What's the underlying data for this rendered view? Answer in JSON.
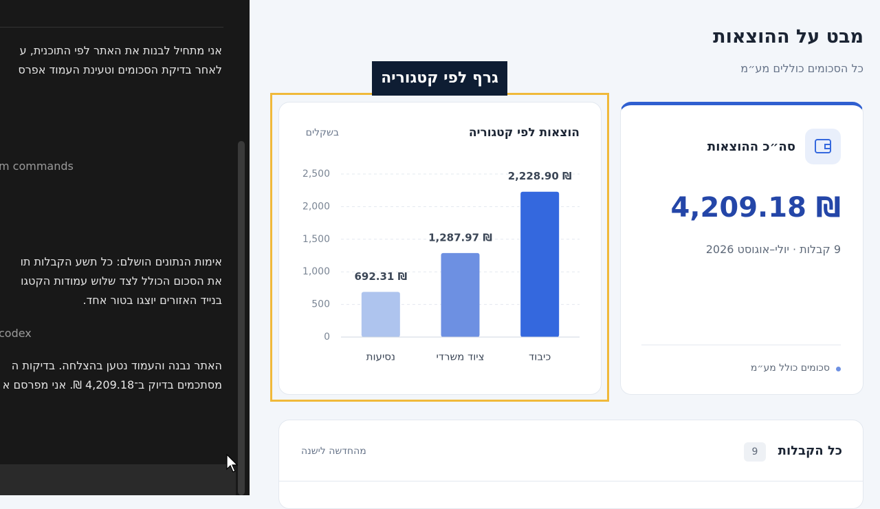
{
  "conversation": {
    "lines": [
      "אני מתחיל לבנות את האתר לפי התוכנית, ע",
      "לאחר בדיקת הסכומים וטעינת העמוד אפרס",
      "m commands",
      "אימות הנתונים הושלם: כל תשע הקבלות תו",
      "את הסכום הכולל לצד שלוש עמודות הקטגו",
      "בנייד האזורים יוצגו בטור אחד.",
      "codex",
      "האתר נבנה והעמוד נטען בהצלחה. בדיקות ה",
      "מסתכמים בדיוק ב־4,209.18 ₪. אני מפרסם א"
    ]
  },
  "header": {
    "title": "מבט על ההוצאות",
    "subtitle": "כל הסכומים כוללים מע״מ"
  },
  "highlight_label": "גרף לפי קטגוריה",
  "total_card": {
    "title": "סה״כ ההוצאות",
    "amount": "4,209.18 ₪",
    "meta": "9 קבלות · יולי–אוגוסט 2026",
    "footer": "סכומים כולל מע״מ"
  },
  "receipts_card": {
    "title": "כל הקבלות",
    "count": "9",
    "sort": "מהחדשה לישנה"
  },
  "chart_data": {
    "type": "bar",
    "title": "הוצאות לפי קטגוריה",
    "subtitle": "בשקלים",
    "categories": [
      "נסיעות",
      "ציוד משרדי",
      "כיבוד"
    ],
    "values": [
      692.31,
      1287.97,
      2228.9
    ],
    "value_labels": [
      "692.31 ₪",
      "1,287.97 ₪",
      "2,228.90 ₪"
    ],
    "colors": [
      "#aec4ee",
      "#6d90e2",
      "#3468de"
    ],
    "ylim": [
      0,
      2500
    ],
    "yticks": [
      0,
      500,
      {
        "value": 1000,
        "label": "1,000"
      },
      {
        "value": 1500,
        "label": "1,500"
      },
      {
        "value": 2000,
        "label": "2,000"
      },
      {
        "value": 2500,
        "label": "2,500"
      }
    ],
    "grid": true
  }
}
